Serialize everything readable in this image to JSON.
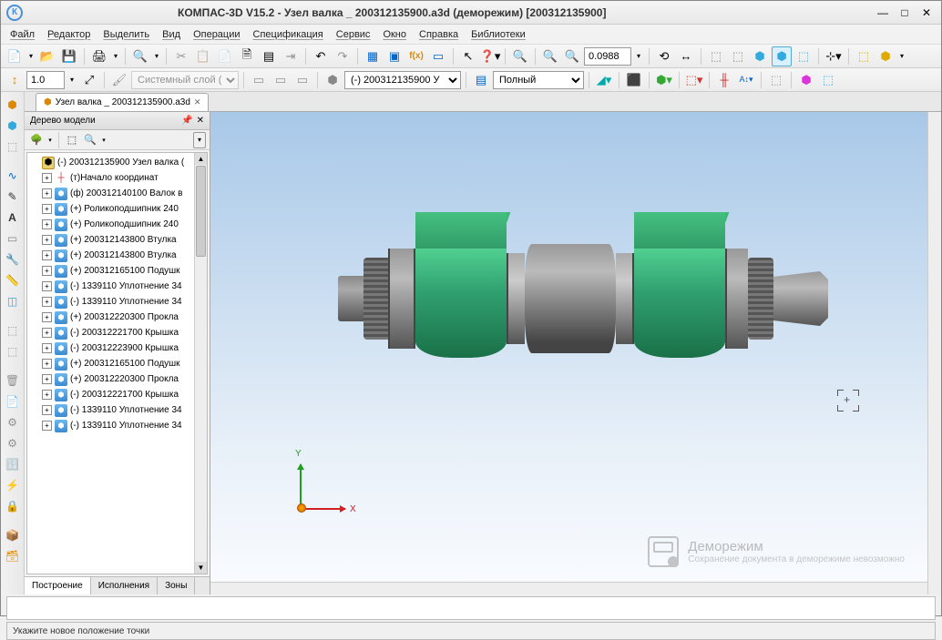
{
  "window": {
    "title": "КОМПАС-3D V15.2  - Узел валка _ 200312135900.a3d (деморежим) [200312135900]",
    "logo_text": "К"
  },
  "menu": [
    "Файл",
    "Редактор",
    "Выделить",
    "Вид",
    "Операции",
    "Спецификация",
    "Сервис",
    "Окно",
    "Справка",
    "Библиотеки"
  ],
  "toolbar1": {
    "zoom_value": "0.0988"
  },
  "toolbar2": {
    "scale_value": "1.0",
    "layer_text": "Системный слой ( )",
    "doc_ref": "(-) 200312135900 У",
    "view_mode": "Полный"
  },
  "document_tab": {
    "icon": "⬢",
    "label": "Узел валка _ 200312135900.a3d"
  },
  "tree": {
    "title": "Дерево модели",
    "root": "(-) 200312135900 Узел валка (",
    "origin": "(т)Начало координат",
    "items": [
      "(ф) 200312140100 Валок в",
      "(+) Роликоподшипник 240",
      "(+) Роликоподшипник 240",
      "(+) 200312143800 Втулка",
      "(+) 200312143800 Втулка",
      "(+) 200312165100 Подушк",
      "(-) 1339110 Уплотнение 34",
      "(-) 1339110 Уплотнение 34",
      "(+) 200312220300 Прокла",
      "(-) 200312221700 Крышка",
      "(-) 200312223900 Крышка",
      "(+) 200312165100 Подушк",
      "(+) 200312220300 Прокла",
      "(-) 200312221700 Крышка",
      "(-) 1339110 Уплотнение 34",
      "(-) 1339110 Уплотнение 34"
    ],
    "tabs": [
      "Построение",
      "Исполнения",
      "Зоны"
    ]
  },
  "axis_labels": {
    "x": "X",
    "y": "Y"
  },
  "demo": {
    "title": "Деморежим",
    "subtitle": "Сохранение документа в деморежиме невозможно"
  },
  "statusbar": "Укажите новое положение точки",
  "colors": {
    "accent_green": "#30a070",
    "accent_metal": "#888888",
    "sky_top": "#a8c8e8",
    "sky_bottom": "#fafcff"
  }
}
